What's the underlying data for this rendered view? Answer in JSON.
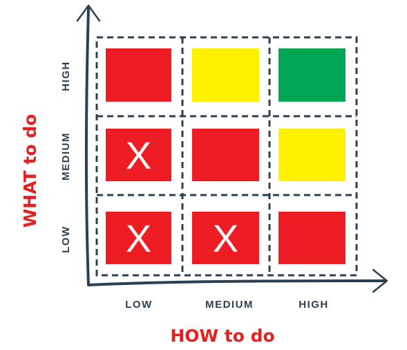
{
  "x_axis": {
    "title": "HOW to do",
    "ticks": [
      "LOW",
      "MEDIUM",
      "HIGH"
    ]
  },
  "y_axis": {
    "title": "WHAT to do",
    "ticks": [
      "LOW",
      "MEDIUM",
      "HIGH"
    ]
  },
  "colors": {
    "red": "#ee1d24",
    "yellow": "#fff100",
    "green": "#00a651",
    "axis": "#2b3f52",
    "title": "#e32121"
  },
  "grid": {
    "rows_top_to_bottom": [
      [
        {
          "color": "red",
          "mark": ""
        },
        {
          "color": "yellow",
          "mark": ""
        },
        {
          "color": "green",
          "mark": ""
        }
      ],
      [
        {
          "color": "red",
          "mark": "X"
        },
        {
          "color": "red",
          "mark": ""
        },
        {
          "color": "yellow",
          "mark": ""
        }
      ],
      [
        {
          "color": "red",
          "mark": "X"
        },
        {
          "color": "red",
          "mark": "X"
        },
        {
          "color": "red",
          "mark": ""
        }
      ]
    ]
  }
}
